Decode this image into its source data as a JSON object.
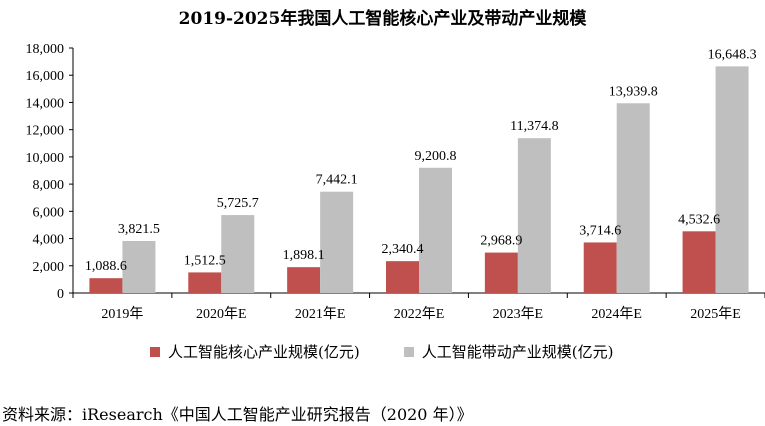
{
  "chart_data": {
    "type": "bar",
    "title": "2019-2025年我国人工智能核心产业及带动产业规模",
    "categories": [
      "2019年",
      "2020年E",
      "2021年E",
      "2022年E",
      "2023年E",
      "2024年E",
      "2025年E"
    ],
    "series": [
      {
        "name": "人工智能核心产业规模(亿元)",
        "color": "#c0504d",
        "values": [
          1088.6,
          1512.5,
          1898.1,
          2340.4,
          2968.9,
          3714.6,
          4532.6
        ],
        "labels": [
          "1,088.6",
          "1,512.5",
          "1,898.1",
          "2,340.4",
          "2,968.9",
          "3,714.6",
          "4,532.6"
        ]
      },
      {
        "name": "人工智能带动产业规模(亿元)",
        "color": "#bfbfbf",
        "values": [
          3821.5,
          5725.7,
          7442.1,
          9200.8,
          11374.8,
          13939.8,
          16648.3
        ],
        "labels": [
          "3,821.5",
          "5,725.7",
          "7,442.1",
          "9,200.8",
          "11,374.8",
          "13,939.8",
          "16,648.3"
        ]
      }
    ],
    "ylim": [
      0,
      18000
    ],
    "yticks": [
      0,
      2000,
      4000,
      6000,
      8000,
      10000,
      12000,
      14000,
      16000,
      18000
    ],
    "ytick_labels": [
      "0",
      "2,000",
      "4,000",
      "6,000",
      "8,000",
      "10,000",
      "12,000",
      "14,000",
      "16,000",
      "18,000"
    ],
    "grid": false,
    "legend_position": "bottom"
  },
  "source": "资料来源：iResearch《中国人工智能产业研究报告（2020 年）》"
}
